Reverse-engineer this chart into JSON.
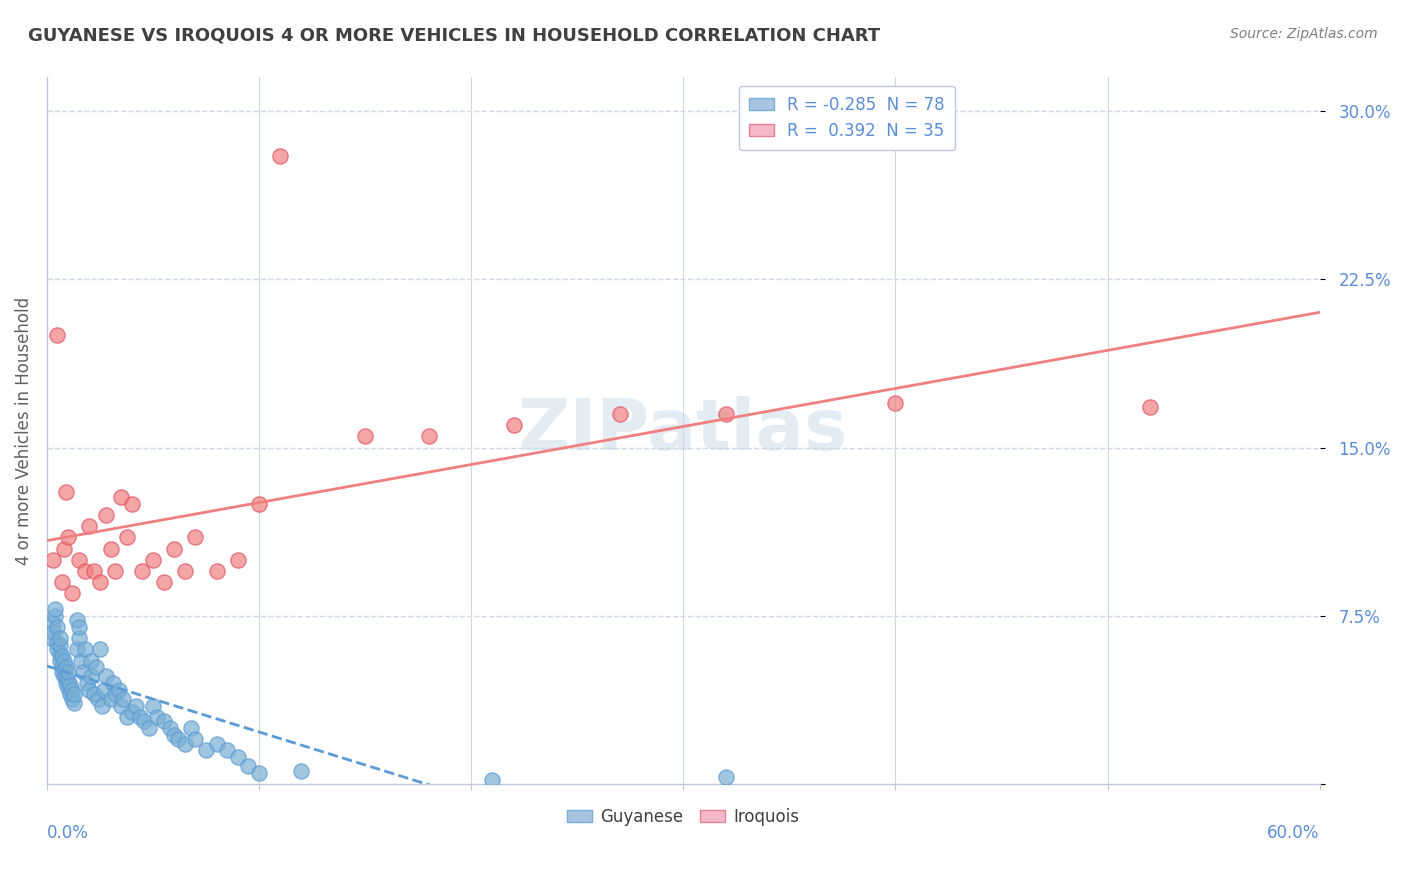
{
  "title": "GUYANESE VS IROQUOIS 4 OR MORE VEHICLES IN HOUSEHOLD CORRELATION CHART",
  "source": "Source: ZipAtlas.com",
  "ylabel": "4 or more Vehicles in Household",
  "yticks": [
    0.0,
    0.075,
    0.15,
    0.225,
    0.3
  ],
  "ytick_labels": [
    "",
    "7.5%",
    "15.0%",
    "22.5%",
    "30.0%"
  ],
  "xmin": 0.0,
  "xmax": 0.6,
  "ymin": 0.0,
  "ymax": 0.315,
  "legend_entries": [
    {
      "label": "R = -0.285  N = 78",
      "color": "#a8c4e0"
    },
    {
      "label": "R =  0.392  N = 35",
      "color": "#f4a8b8"
    }
  ],
  "watermark": "ZIPatlas",
  "guyanese_color": "#7aafd4",
  "iroquois_color": "#f08080",
  "guyanese_line_color": "#5b9bd5",
  "iroquois_line_color": "#f08080",
  "background_color": "#ffffff",
  "grid_color": "#d0d8e8",
  "title_color": "#404040",
  "source_color": "#808080",
  "guyanese_scatter_x": [
    0.002,
    0.003,
    0.003,
    0.004,
    0.004,
    0.005,
    0.005,
    0.005,
    0.006,
    0.006,
    0.006,
    0.006,
    0.007,
    0.007,
    0.007,
    0.008,
    0.008,
    0.008,
    0.009,
    0.009,
    0.009,
    0.01,
    0.01,
    0.01,
    0.011,
    0.011,
    0.012,
    0.012,
    0.013,
    0.013,
    0.014,
    0.014,
    0.015,
    0.015,
    0.016,
    0.017,
    0.018,
    0.019,
    0.02,
    0.021,
    0.021,
    0.022,
    0.023,
    0.024,
    0.025,
    0.026,
    0.027,
    0.028,
    0.03,
    0.031,
    0.032,
    0.034,
    0.035,
    0.036,
    0.038,
    0.04,
    0.042,
    0.044,
    0.046,
    0.048,
    0.05,
    0.052,
    0.055,
    0.058,
    0.06,
    0.062,
    0.065,
    0.068,
    0.07,
    0.075,
    0.08,
    0.085,
    0.09,
    0.095,
    0.1,
    0.12,
    0.21,
    0.32
  ],
  "guyanese_scatter_y": [
    0.065,
    0.072,
    0.068,
    0.075,
    0.078,
    0.06,
    0.063,
    0.07,
    0.055,
    0.058,
    0.062,
    0.065,
    0.05,
    0.053,
    0.057,
    0.048,
    0.051,
    0.055,
    0.045,
    0.048,
    0.052,
    0.043,
    0.046,
    0.05,
    0.04,
    0.044,
    0.038,
    0.042,
    0.036,
    0.04,
    0.06,
    0.073,
    0.065,
    0.07,
    0.055,
    0.05,
    0.06,
    0.045,
    0.042,
    0.048,
    0.055,
    0.04,
    0.052,
    0.038,
    0.06,
    0.035,
    0.042,
    0.048,
    0.038,
    0.045,
    0.04,
    0.042,
    0.035,
    0.038,
    0.03,
    0.032,
    0.035,
    0.03,
    0.028,
    0.025,
    0.035,
    0.03,
    0.028,
    0.025,
    0.022,
    0.02,
    0.018,
    0.025,
    0.02,
    0.015,
    0.018,
    0.015,
    0.012,
    0.008,
    0.005,
    0.006,
    0.002,
    0.003
  ],
  "iroquois_scatter_x": [
    0.003,
    0.005,
    0.007,
    0.008,
    0.009,
    0.01,
    0.012,
    0.015,
    0.018,
    0.02,
    0.022,
    0.025,
    0.028,
    0.03,
    0.032,
    0.035,
    0.038,
    0.04,
    0.045,
    0.05,
    0.055,
    0.06,
    0.065,
    0.07,
    0.08,
    0.09,
    0.1,
    0.11,
    0.15,
    0.18,
    0.22,
    0.27,
    0.32,
    0.4,
    0.52
  ],
  "iroquois_scatter_y": [
    0.1,
    0.2,
    0.09,
    0.105,
    0.13,
    0.11,
    0.085,
    0.1,
    0.095,
    0.115,
    0.095,
    0.09,
    0.12,
    0.105,
    0.095,
    0.128,
    0.11,
    0.125,
    0.095,
    0.1,
    0.09,
    0.105,
    0.095,
    0.11,
    0.095,
    0.1,
    0.125,
    0.28,
    0.155,
    0.155,
    0.16,
    0.165,
    0.165,
    0.17,
    0.168
  ]
}
